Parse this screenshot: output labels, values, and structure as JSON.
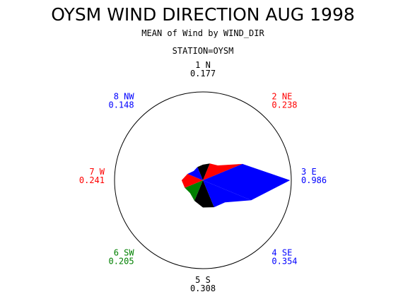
{
  "chart_data": {
    "type": "polar",
    "title": "OYSM WIND DIRECTION AUG 1998",
    "subtitle": "MEAN of Wind by WIND_DIR",
    "station_label": "STATION=OYSM",
    "value_range": [
      0,
      1
    ],
    "directions": [
      {
        "label": "1 N",
        "value": 0.177,
        "value_text": "0.177",
        "color": "#000000"
      },
      {
        "label": "2 NE",
        "value": 0.238,
        "value_text": "0.238",
        "color": "#ff0000"
      },
      {
        "label": "3 E",
        "value": 0.986,
        "value_text": "0.986",
        "color": "#0000ff"
      },
      {
        "label": "4 SE",
        "value": 0.354,
        "value_text": "0.354",
        "color": "#0000ff"
      },
      {
        "label": "5 S",
        "value": 0.308,
        "value_text": "0.308",
        "color": "#000000"
      },
      {
        "label": "6 SW",
        "value": 0.205,
        "value_text": "0.205",
        "color": "#008000"
      },
      {
        "label": "7 W",
        "value": 0.241,
        "value_text": "0.241",
        "color": "#ff0000"
      },
      {
        "label": "8 NW",
        "value": 0.148,
        "value_text": "0.148",
        "color": "#0000ff"
      }
    ]
  }
}
